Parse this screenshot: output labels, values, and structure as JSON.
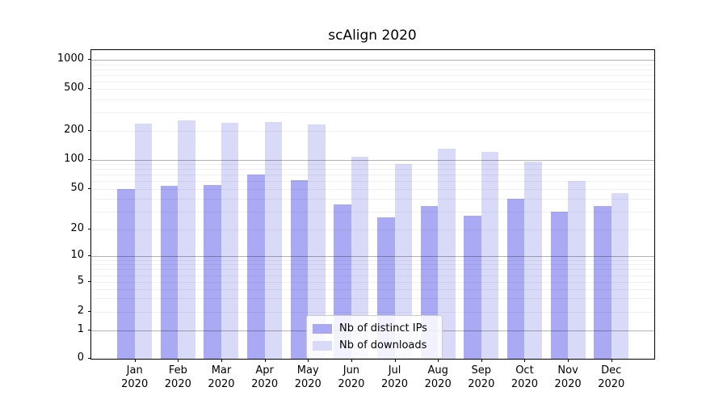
{
  "title": "scAlign 2020",
  "colors": {
    "ips": "#a9a9f4",
    "downloads": "#d9d9f8",
    "axis": "#000000",
    "grid_major": "#b3b3b3",
    "grid_minor": "#ececec",
    "legend_border": "#cccccc"
  },
  "legend": {
    "items": [
      {
        "label": "Nb of distinct IPs",
        "series": "ips"
      },
      {
        "label": "Nb of downloads",
        "series": "downloads"
      }
    ]
  },
  "chart_data": {
    "type": "bar",
    "title": "scAlign 2020",
    "categories": [
      "Jan 2020",
      "Feb 2020",
      "Mar 2020",
      "Apr 2020",
      "May 2020",
      "Jun 2020",
      "Jul 2020",
      "Aug 2020",
      "Sep 2020",
      "Oct 2020",
      "Nov 2020",
      "Dec 2020"
    ],
    "series": [
      {
        "name": "Nb of distinct IPs",
        "color_key": "ips",
        "values": [
          50,
          54,
          55,
          70,
          62,
          35,
          26,
          34,
          27,
          40,
          30,
          34
        ]
      },
      {
        "name": "Nb of downloads",
        "color_key": "downloads",
        "values": [
          235,
          250,
          238,
          245,
          230,
          107,
          90,
          130,
          121,
          96,
          60,
          45
        ]
      }
    ],
    "xlabel": "",
    "ylabel": "",
    "yscale": "symlog",
    "yticks": [
      0,
      1,
      2,
      5,
      10,
      20,
      50,
      100,
      200,
      500,
      1000
    ],
    "ylim": [
      0,
      1000
    ],
    "grid": true,
    "legend_position": "lower center"
  }
}
